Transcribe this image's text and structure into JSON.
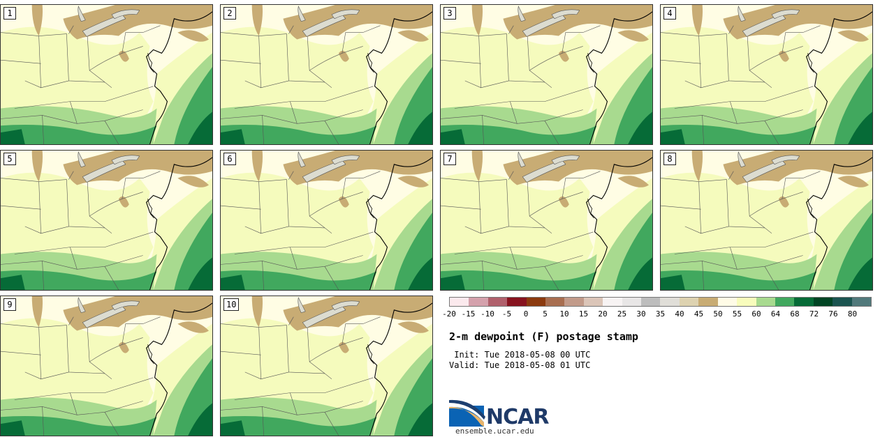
{
  "title": "2-m dewpoint (F) postage stamp",
  "init_text": " Init: Tue 2018-05-08 00 UTC",
  "valid_text": "Valid: Tue 2018-05-08 01 UTC",
  "website": "ensemble.ucar.edu",
  "logo_text": "NCAR",
  "panels": [
    "1",
    "2",
    "3",
    "4",
    "5",
    "6",
    "7",
    "8",
    "9",
    "10"
  ],
  "colorbar": {
    "ticks": [
      "-20",
      "-15",
      "-10",
      "-5",
      "0",
      "5",
      "10",
      "15",
      "20",
      "25",
      "30",
      "35",
      "40",
      "45",
      "50",
      "55",
      "60",
      "64",
      "68",
      "72",
      "76",
      "80"
    ],
    "colors": [
      "#fbe9ed",
      "#d4a1ac",
      "#b0606c",
      "#87131f",
      "#8b3a0f",
      "#a86e50",
      "#c29b8a",
      "#dbc5b8",
      "#f7f3f3",
      "#e8e6e6",
      "#bdbdbd",
      "#e0ded8",
      "#ddd2b0",
      "#c8ac74",
      "#fffbe6",
      "#f8fcbc",
      "#a8da8f",
      "#41a85e",
      "#066b37",
      "#014524",
      "#1b5450",
      "#51797b"
    ]
  },
  "map_colors": {
    "base": "#fffde4",
    "light_green_yellow": "#f5fbbd",
    "mid_green": "#a8da8f",
    "green": "#41a85e",
    "dark_green": "#066b37",
    "tan": "#c8ac74",
    "lake": "#dcdcd0",
    "lines": "#555555",
    "coast": "#000000"
  }
}
